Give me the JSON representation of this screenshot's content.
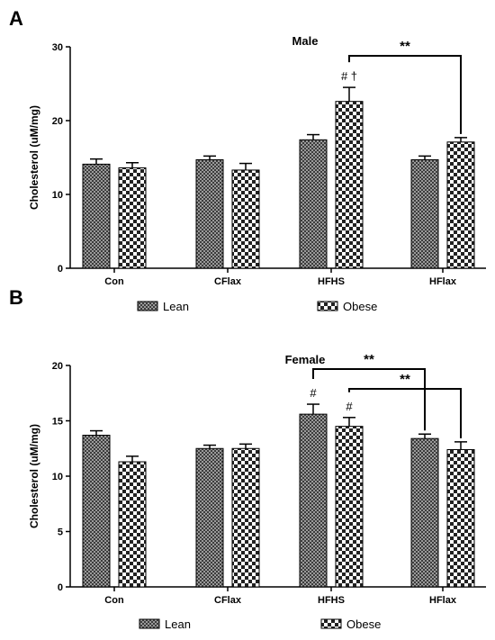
{
  "chart_data": [
    {
      "type": "bar",
      "panel": "A",
      "title": "Male",
      "ylabel": "Cholesterol (uM/mg)",
      "ylim": [
        0,
        30
      ],
      "yticks": [
        0,
        10,
        20,
        30
      ],
      "categories": [
        "Con",
        "CFlax",
        "HFHS",
        "HFlax"
      ],
      "series": [
        {
          "name": "Lean",
          "values": [
            14.1,
            14.7,
            17.4,
            14.7
          ],
          "errors": [
            0.7,
            0.5,
            0.7,
            0.5
          ]
        },
        {
          "name": "Obese",
          "values": [
            13.6,
            13.3,
            22.6,
            17.1
          ],
          "errors": [
            0.7,
            0.9,
            1.9,
            0.6
          ]
        }
      ],
      "annotations": [
        {
          "category": "HFHS",
          "series": "Obese",
          "text": "# †"
        }
      ],
      "brackets": [
        {
          "from": [
            "HFHS",
            "Obese"
          ],
          "to": [
            "HFlax",
            "Obese"
          ],
          "label": "**"
        }
      ],
      "legend": "bottom"
    },
    {
      "type": "bar",
      "panel": "B",
      "title": "Female",
      "ylabel": "Cholesterol (uM/mg)",
      "ylim": [
        0,
        20
      ],
      "yticks": [
        0,
        5,
        10,
        15,
        20
      ],
      "categories": [
        "Con",
        "CFlax",
        "HFHS",
        "HFlax"
      ],
      "series": [
        {
          "name": "Lean",
          "values": [
            13.7,
            12.5,
            15.6,
            13.4
          ],
          "errors": [
            0.4,
            0.3,
            0.9,
            0.4
          ]
        },
        {
          "name": "Obese",
          "values": [
            11.3,
            12.5,
            14.5,
            12.4
          ],
          "errors": [
            0.5,
            0.4,
            0.8,
            0.7
          ]
        }
      ],
      "annotations": [
        {
          "category": "HFHS",
          "series": "Lean",
          "text": "#"
        },
        {
          "category": "HFHS",
          "series": "Obese",
          "text": "#"
        }
      ],
      "brackets": [
        {
          "from": [
            "HFHS",
            "Lean"
          ],
          "to": [
            "HFlax",
            "Lean"
          ],
          "label": "**"
        },
        {
          "from": [
            "HFHS",
            "Obese"
          ],
          "to": [
            "HFlax",
            "Obese"
          ],
          "label": "**"
        }
      ],
      "legend": "bottom"
    }
  ]
}
